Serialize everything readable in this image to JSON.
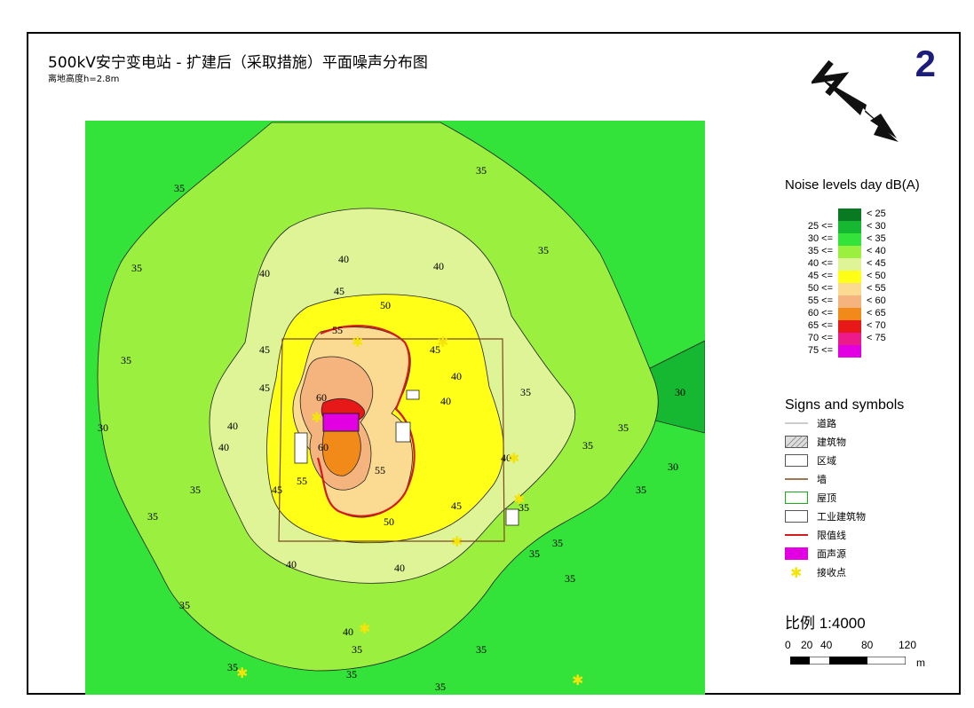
{
  "header": {
    "title": "500kV安宁变电站 - 扩建后（采取措施）平面噪声分布图",
    "subtitle": "离地高度h=2.8m",
    "sheet_number": "2"
  },
  "map": {
    "contour_labels": [
      "40",
      "40",
      "40",
      "35",
      "35",
      "35",
      "35",
      "35",
      "35",
      "35",
      "35",
      "35",
      "40",
      "40",
      "45",
      "45",
      "45",
      "45",
      "50",
      "50",
      "55",
      "55",
      "55",
      "60",
      "60",
      "40",
      "40",
      "45",
      "45",
      "40",
      "30",
      "30",
      "30",
      "35",
      "35",
      "40",
      "40",
      "35",
      "35",
      "40",
      "35",
      "35",
      "35",
      "35",
      "35",
      "35",
      "35",
      "35"
    ],
    "colors": {
      "lt25": "#0a7a22",
      "25_30": "#15b830",
      "30_35": "#33e33a",
      "35_40": "#9bef3f",
      "40_45": "#dff397",
      "45_50": "#ffff17",
      "50_55": "#fbda92",
      "55_60": "#f5b47e",
      "60_65": "#f28a1a",
      "65_70": "#e61818",
      "70_75": "#ec1a8a",
      "ge75": "#e200e2"
    }
  },
  "legend": {
    "title": "Noise levels day dB(A)",
    "rows": [
      {
        "lo": "",
        "hi": "< 25",
        "color": "#0a7a22"
      },
      {
        "lo": "25 <=",
        "hi": "< 30",
        "color": "#15b830"
      },
      {
        "lo": "30 <=",
        "hi": "< 35",
        "color": "#33e33a"
      },
      {
        "lo": "35 <=",
        "hi": "< 40",
        "color": "#9bef3f"
      },
      {
        "lo": "40 <=",
        "hi": "< 45",
        "color": "#dff397"
      },
      {
        "lo": "45 <=",
        "hi": "< 50",
        "color": "#ffff17"
      },
      {
        "lo": "50 <=",
        "hi": "< 55",
        "color": "#fbda92"
      },
      {
        "lo": "55 <=",
        "hi": "< 60",
        "color": "#f5b47e"
      },
      {
        "lo": "60 <=",
        "hi": "< 65",
        "color": "#f28a1a"
      },
      {
        "lo": "65 <=",
        "hi": "< 70",
        "color": "#e61818"
      },
      {
        "lo": "70 <=",
        "hi": "< 75",
        "color": "#ec1a8a"
      },
      {
        "lo": "75 <=",
        "hi": "",
        "color": "#e200e2"
      }
    ]
  },
  "signs": {
    "title": "Signs and symbols",
    "items": [
      {
        "label": "道路",
        "icon": "road-line"
      },
      {
        "label": "建筑物",
        "icon": "hatched-building"
      },
      {
        "label": "区域",
        "icon": "area-box"
      },
      {
        "label": "墙",
        "icon": "wall-line"
      },
      {
        "label": "屋顶",
        "icon": "roof-box"
      },
      {
        "label": "工业建筑物",
        "icon": "industrial-box"
      },
      {
        "label": "限值线",
        "icon": "limit-line"
      },
      {
        "label": "面声源",
        "icon": "area-source"
      },
      {
        "label": "接收点",
        "icon": "receiver-star"
      }
    ]
  },
  "scale": {
    "title": "比例 1:4000",
    "ticks": [
      "0",
      "20",
      "40",
      "80",
      "120"
    ],
    "unit": "m"
  }
}
